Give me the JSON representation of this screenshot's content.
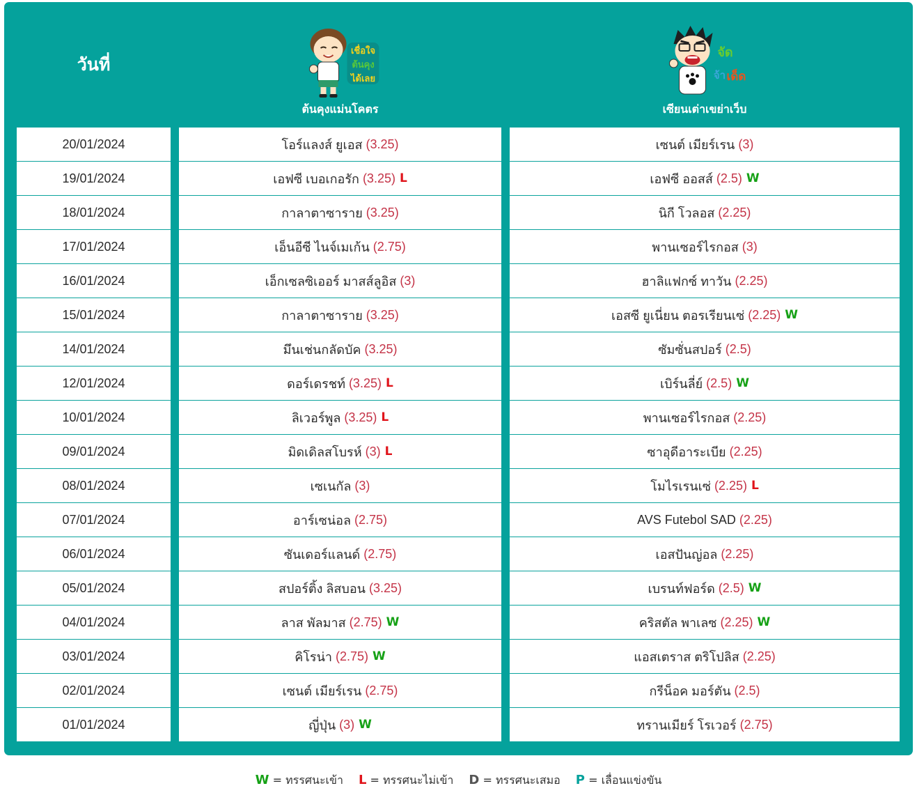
{
  "header": {
    "date_label": "วันที่",
    "tipster_a": {
      "name": "ต้นคุงแม่นโคตร",
      "avatar": "cartoon-boy-thumbs-up-icon",
      "sticker_text": [
        "เชื่อใจ",
        "ต้นคุง",
        "ได้เลย"
      ]
    },
    "tipster_b": {
      "name": "เซียนเต่าเขย่าเว็บ",
      "avatar": "cartoon-man-shouting-icon",
      "sticker_text": [
        "จัด",
        "จ้า",
        "เด็ด"
      ]
    }
  },
  "rows": [
    {
      "date": "20/01/2024",
      "a_team": "โอร์แลงส์ ยูเอส",
      "a_odds": "(3.25)",
      "a_res": "",
      "b_team": "เซนต์ เมียร์เรน",
      "b_odds": "(3)",
      "b_res": ""
    },
    {
      "date": "19/01/2024",
      "a_team": "เอฟซี เบอเกอรัก",
      "a_odds": "(3.25)",
      "a_res": "L",
      "b_team": "เอฟซี ออสส์",
      "b_odds": "(2.5)",
      "b_res": "W"
    },
    {
      "date": "18/01/2024",
      "a_team": "กาลาตาซาราย",
      "a_odds": "(3.25)",
      "a_res": "",
      "b_team": "นิกี โวลอส",
      "b_odds": "(2.25)",
      "b_res": ""
    },
    {
      "date": "17/01/2024",
      "a_team": "เอ็นอีซี ไนจ์เมเก้น",
      "a_odds": "(2.75)",
      "a_res": "",
      "b_team": "พานเซอร์ไรกอส",
      "b_odds": "(3)",
      "b_res": ""
    },
    {
      "date": "16/01/2024",
      "a_team": "เอ็กเซลซิเออร์ มาสส์ลูอิส",
      "a_odds": "(3)",
      "a_res": "",
      "b_team": "ฮาลิแฟกซ์ ทาวัน",
      "b_odds": "(2.25)",
      "b_res": ""
    },
    {
      "date": "15/01/2024",
      "a_team": "กาลาตาซาราย",
      "a_odds": "(3.25)",
      "a_res": "",
      "b_team": "เอสซี ยูเนี่ยน ตอรเรียนเซ่",
      "b_odds": "(2.25)",
      "b_res": "W"
    },
    {
      "date": "14/01/2024",
      "a_team": "มึนเช่นกลัดบัค",
      "a_odds": "(3.25)",
      "a_res": "",
      "b_team": "ซัมซั่นสปอร์",
      "b_odds": "(2.5)",
      "b_res": ""
    },
    {
      "date": "12/01/2024",
      "a_team": "ดอร์เดรชท์",
      "a_odds": "(3.25)",
      "a_res": "L",
      "b_team": "เบิร์นลี่ย์",
      "b_odds": "(2.5)",
      "b_res": "W"
    },
    {
      "date": "10/01/2024",
      "a_team": "ลิเวอร์พูล",
      "a_odds": "(3.25)",
      "a_res": "L",
      "b_team": "พานเซอร์ไรกอส",
      "b_odds": "(2.25)",
      "b_res": ""
    },
    {
      "date": "09/01/2024",
      "a_team": "มิดเดิลสโบรห์",
      "a_odds": "(3)",
      "a_res": "L",
      "b_team": "ซาอุดีอาระเบีย",
      "b_odds": "(2.25)",
      "b_res": ""
    },
    {
      "date": "08/01/2024",
      "a_team": "เซเนกัล",
      "a_odds": "(3)",
      "a_res": "",
      "b_team": "โมไรเรนเซ่",
      "b_odds": "(2.25)",
      "b_res": "L"
    },
    {
      "date": "07/01/2024",
      "a_team": "อาร์เซน่อล",
      "a_odds": "(2.75)",
      "a_res": "",
      "b_team": "AVS Futebol SAD",
      "b_odds": "(2.25)",
      "b_res": ""
    },
    {
      "date": "06/01/2024",
      "a_team": "ซันเดอร์แลนด์",
      "a_odds": "(2.75)",
      "a_res": "",
      "b_team": "เอสปันญ่อล",
      "b_odds": "(2.25)",
      "b_res": ""
    },
    {
      "date": "05/01/2024",
      "a_team": "สปอร์ติ้ง ลิสบอน",
      "a_odds": "(3.25)",
      "a_res": "",
      "b_team": "เบรนท์ฟอร์ด",
      "b_odds": "(2.5)",
      "b_res": "W"
    },
    {
      "date": "04/01/2024",
      "a_team": "ลาส พัลมาส",
      "a_odds": "(2.75)",
      "a_res": "W",
      "b_team": "คริสตัล พาเลซ",
      "b_odds": "(2.25)",
      "b_res": "W"
    },
    {
      "date": "03/01/2024",
      "a_team": "คิโรน่า",
      "a_odds": "(2.75)",
      "a_res": "W",
      "b_team": "แอสเตราส ตริโปลิส",
      "b_odds": "(2.25)",
      "b_res": ""
    },
    {
      "date": "02/01/2024",
      "a_team": "เซนต์ เมียร์เรน",
      "a_odds": "(2.75)",
      "a_res": "",
      "b_team": "กรีน็อค มอร์ตัน",
      "b_odds": "(2.5)",
      "b_res": ""
    },
    {
      "date": "01/01/2024",
      "a_team": "ญี่ปุ่น",
      "a_odds": "(3)",
      "a_res": "W",
      "b_team": "ทรานเมียร์ โรเวอร์",
      "b_odds": "(2.75)",
      "b_res": ""
    }
  ],
  "legend": [
    {
      "key": "W",
      "text": "= ทรรศนะเข้า"
    },
    {
      "key": "L",
      "text": "= ทรรศนะไม่เข้า"
    },
    {
      "key": "D",
      "text": "= ทรรศนะเสมอ"
    },
    {
      "key": "P",
      "text": "= เลื่อนแข่งขัน"
    }
  ],
  "colors": {
    "panel": "#05a29c",
    "odds": "#c43347",
    "win": "#16a116",
    "loss": "#e0141b"
  }
}
